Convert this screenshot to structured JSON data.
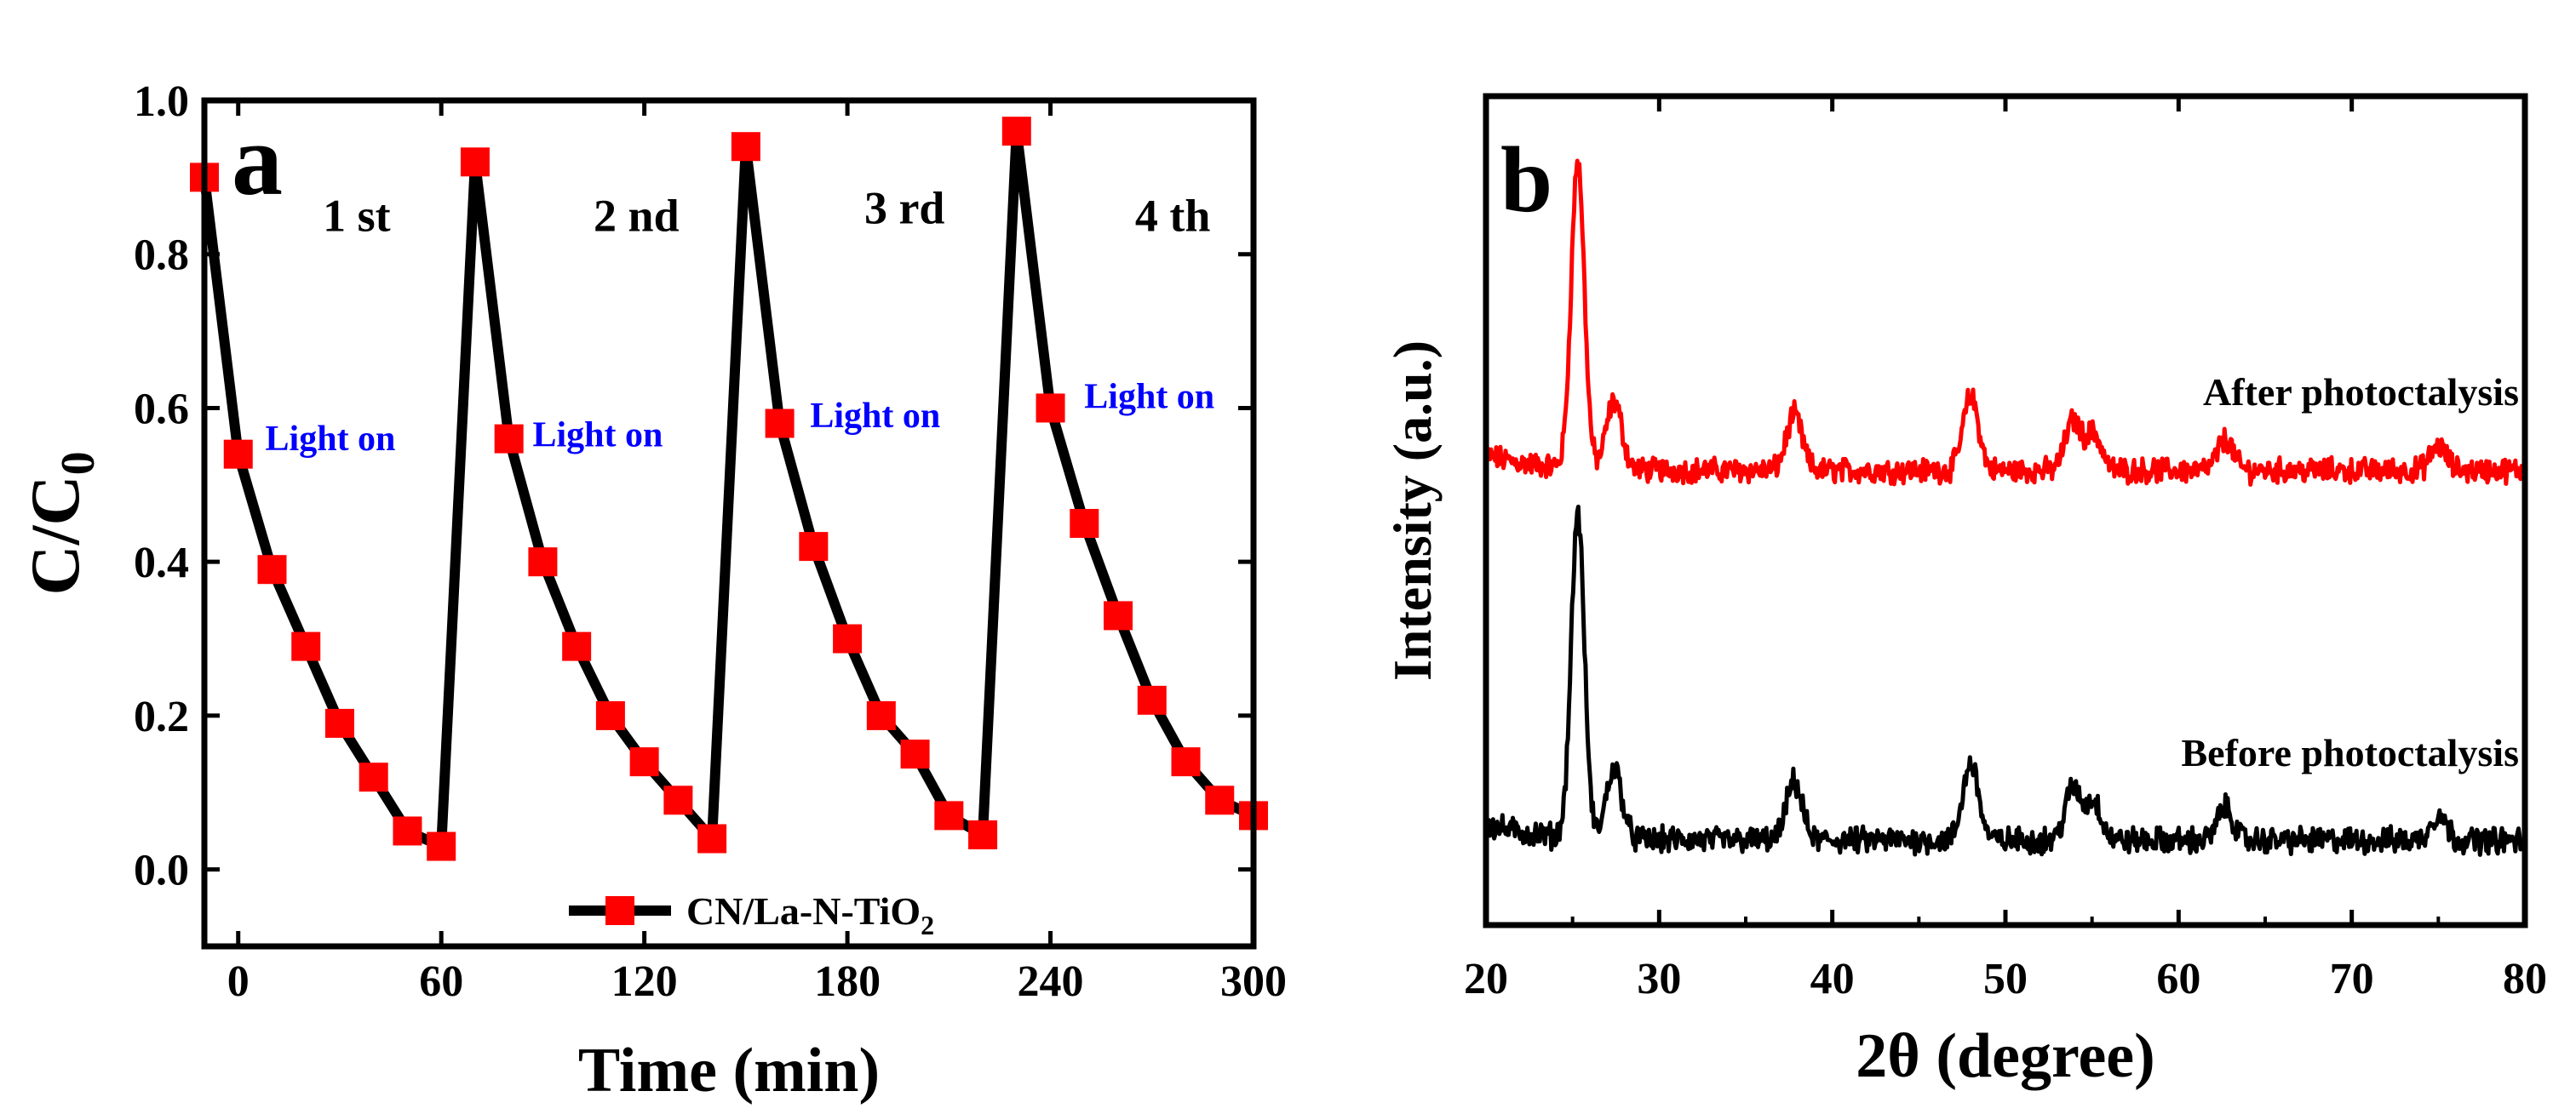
{
  "chart_data": [
    {
      "type": "line",
      "panel_label": "a",
      "xlabel": "Time (min)",
      "ylabel_main": "C/C",
      "ylabel_sub": "0",
      "xlim": [
        -10,
        300
      ],
      "ylim": [
        -0.1,
        1.0
      ],
      "xticks": [
        0,
        60,
        120,
        180,
        240,
        300
      ],
      "yticks": [
        "0.0",
        "0.2",
        "0.4",
        "0.6",
        "0.8",
        "1.0"
      ],
      "grid": false,
      "legend": {
        "position": "bottom-center",
        "main": "CN/La-N-TiO",
        "sub": "2"
      },
      "series": [
        {
          "name": "CN/La-N-TiO2",
          "color": "#000000",
          "marker_color": "#ff0000",
          "marker": "square",
          "x": [
            -10,
            0,
            10,
            20,
            30,
            40,
            50,
            60,
            70,
            80,
            90,
            100,
            110,
            120,
            130,
            140,
            150,
            160,
            170,
            180,
            190,
            200,
            210,
            220,
            230,
            240,
            250,
            260,
            270,
            280,
            290,
            300
          ],
          "y": [
            0.9,
            0.54,
            0.39,
            0.29,
            0.19,
            0.12,
            0.05,
            0.03,
            0.92,
            0.56,
            0.4,
            0.29,
            0.2,
            0.14,
            0.09,
            0.04,
            0.94,
            0.58,
            0.42,
            0.3,
            0.2,
            0.15,
            0.07,
            0.045,
            0.96,
            0.6,
            0.45,
            0.33,
            0.22,
            0.14,
            0.09,
            0.07
          ]
        }
      ],
      "annotations": [
        {
          "text": "1 st",
          "x": 25,
          "y": 0.83,
          "color": "#000000",
          "size": "big"
        },
        {
          "text": "2 nd",
          "x": 105,
          "y": 0.83,
          "color": "#000000",
          "size": "big"
        },
        {
          "text": "3 rd",
          "x": 185,
          "y": 0.84,
          "color": "#000000",
          "size": "big"
        },
        {
          "text": "4 th",
          "x": 265,
          "y": 0.83,
          "color": "#000000",
          "size": "big"
        },
        {
          "text": "Light on",
          "x": 8,
          "y": 0.545,
          "color": "#0000ff",
          "size": "small"
        },
        {
          "text": "Light on",
          "x": 87,
          "y": 0.55,
          "color": "#0000ff",
          "size": "small"
        },
        {
          "text": "Light on",
          "x": 169,
          "y": 0.575,
          "color": "#0000ff",
          "size": "small"
        },
        {
          "text": "Light on",
          "x": 250,
          "y": 0.6,
          "color": "#0000ff",
          "size": "small"
        }
      ]
    },
    {
      "type": "line",
      "panel_label": "b",
      "xlabel": "2θ (degree)",
      "ylabel": "Intensity (a.u.)",
      "xlim": [
        20,
        80
      ],
      "xticks": [
        "20",
        "30",
        "40",
        "50",
        "60",
        "70",
        "80"
      ],
      "yticks_labeled": false,
      "grid": false,
      "series": [
        {
          "name": "After photoctalysis",
          "color": "#ff0000",
          "offset": 1.0,
          "peaks": [
            [
              25.3,
              1.0
            ],
            [
              27.4,
              0.22
            ],
            [
              37.8,
              0.18
            ],
            [
              48.0,
              0.24
            ],
            [
              53.9,
              0.16
            ],
            [
              55.1,
              0.12
            ],
            [
              62.7,
              0.1
            ],
            [
              75.0,
              0.08
            ]
          ]
        },
        {
          "name": "Before photoctalysis",
          "color": "#000000",
          "offset": 0.0,
          "peaks": [
            [
              25.3,
              1.0
            ],
            [
              27.4,
              0.22
            ],
            [
              37.8,
              0.18
            ],
            [
              48.0,
              0.24
            ],
            [
              53.9,
              0.16
            ],
            [
              55.1,
              0.12
            ],
            [
              62.7,
              0.1
            ],
            [
              75.0,
              0.08
            ]
          ]
        }
      ]
    }
  ]
}
